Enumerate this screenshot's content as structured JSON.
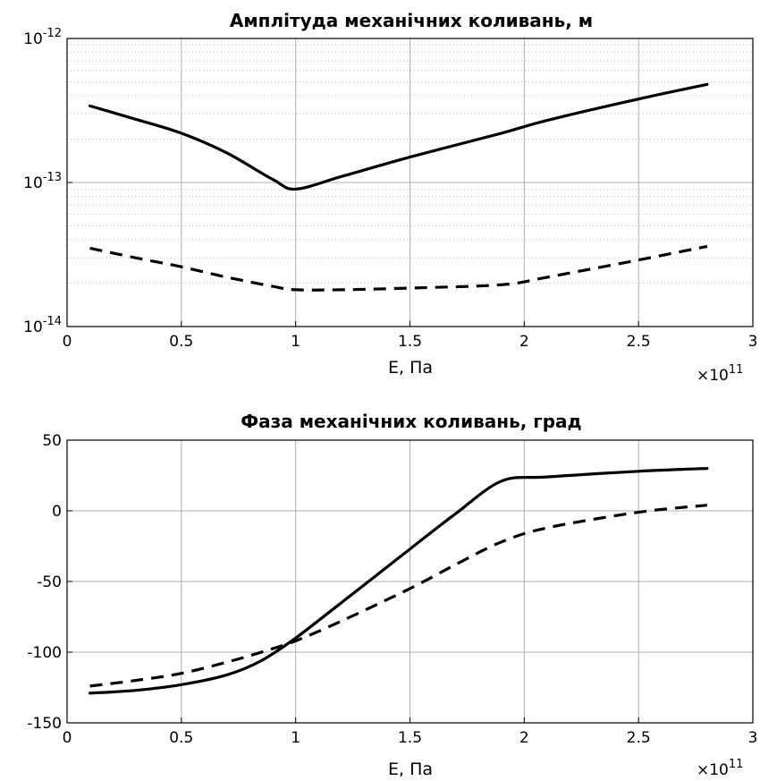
{
  "chart_data": [
    {
      "type": "line",
      "title": "Амплітуда механічних коливань, м",
      "xlabel": "E, Па",
      "ylabel": "",
      "x_multiplier": "×10",
      "x_exponent": "11",
      "yscale": "log",
      "xlim": [
        0,
        3
      ],
      "ylim": [
        1e-14,
        1e-12
      ],
      "grid": true,
      "x_ticks": [
        "0",
        "0.5",
        "1",
        "1.5",
        "2",
        "2.5",
        "3"
      ],
      "y_ticks": [
        {
          "base": "10",
          "exp": "-14",
          "value": 1e-14
        },
        {
          "base": "10",
          "exp": "-13",
          "value": 1e-13
        },
        {
          "base": "10",
          "exp": "-12",
          "value": 1e-12
        }
      ],
      "series": [
        {
          "style": "solid",
          "x": [
            0.1,
            0.3,
            0.5,
            0.7,
            0.9,
            1.0,
            1.2,
            1.5,
            1.9,
            2.1,
            2.5,
            2.8
          ],
          "y": [
            3.4e-13,
            2.75e-13,
            2.2e-13,
            1.6e-13,
            1.05e-13,
            9e-14,
            1.1e-13,
            1.5e-13,
            2.2e-13,
            2.7e-13,
            3.8e-13,
            4.8e-13
          ]
        },
        {
          "style": "dashed",
          "x": [
            0.1,
            0.3,
            0.5,
            0.7,
            0.9,
            1.0,
            1.2,
            1.5,
            1.9,
            2.1,
            2.5,
            2.8
          ],
          "y": [
            3.5e-14,
            3e-14,
            2.6e-14,
            2.2e-14,
            1.9e-14,
            1.8e-14,
            1.8e-14,
            1.85e-14,
            1.95e-14,
            2.2e-14,
            2.9e-14,
            3.6e-14
          ]
        }
      ]
    },
    {
      "type": "line",
      "title": "Фаза механічних коливань, град",
      "xlabel": "E, Па",
      "ylabel": "",
      "x_multiplier": "×10",
      "x_exponent": "11",
      "yscale": "linear",
      "xlim": [
        0,
        3
      ],
      "ylim": [
        -150,
        50
      ],
      "grid": true,
      "x_ticks": [
        "0",
        "0.5",
        "1",
        "1.5",
        "2",
        "2.5",
        "3"
      ],
      "y_ticks": [
        "-150",
        "-100",
        "-50",
        "0",
        "50"
      ],
      "series": [
        {
          "style": "solid",
          "x": [
            0.1,
            0.3,
            0.5,
            0.7,
            0.85,
            1.0,
            1.2,
            1.5,
            1.7,
            1.9,
            2.1,
            2.5,
            2.8
          ],
          "y": [
            -129,
            -127,
            -123,
            -116,
            -106,
            -90,
            -65,
            -27,
            -2,
            21,
            24,
            28,
            30
          ]
        },
        {
          "style": "dashed",
          "x": [
            0.1,
            0.3,
            0.5,
            0.7,
            0.85,
            1.0,
            1.2,
            1.5,
            1.7,
            1.9,
            2.1,
            2.5,
            2.8
          ],
          "y": [
            -124,
            -120,
            -115,
            -107,
            -100,
            -92,
            -78,
            -55,
            -38,
            -22,
            -12,
            -1,
            4
          ]
        }
      ]
    }
  ]
}
